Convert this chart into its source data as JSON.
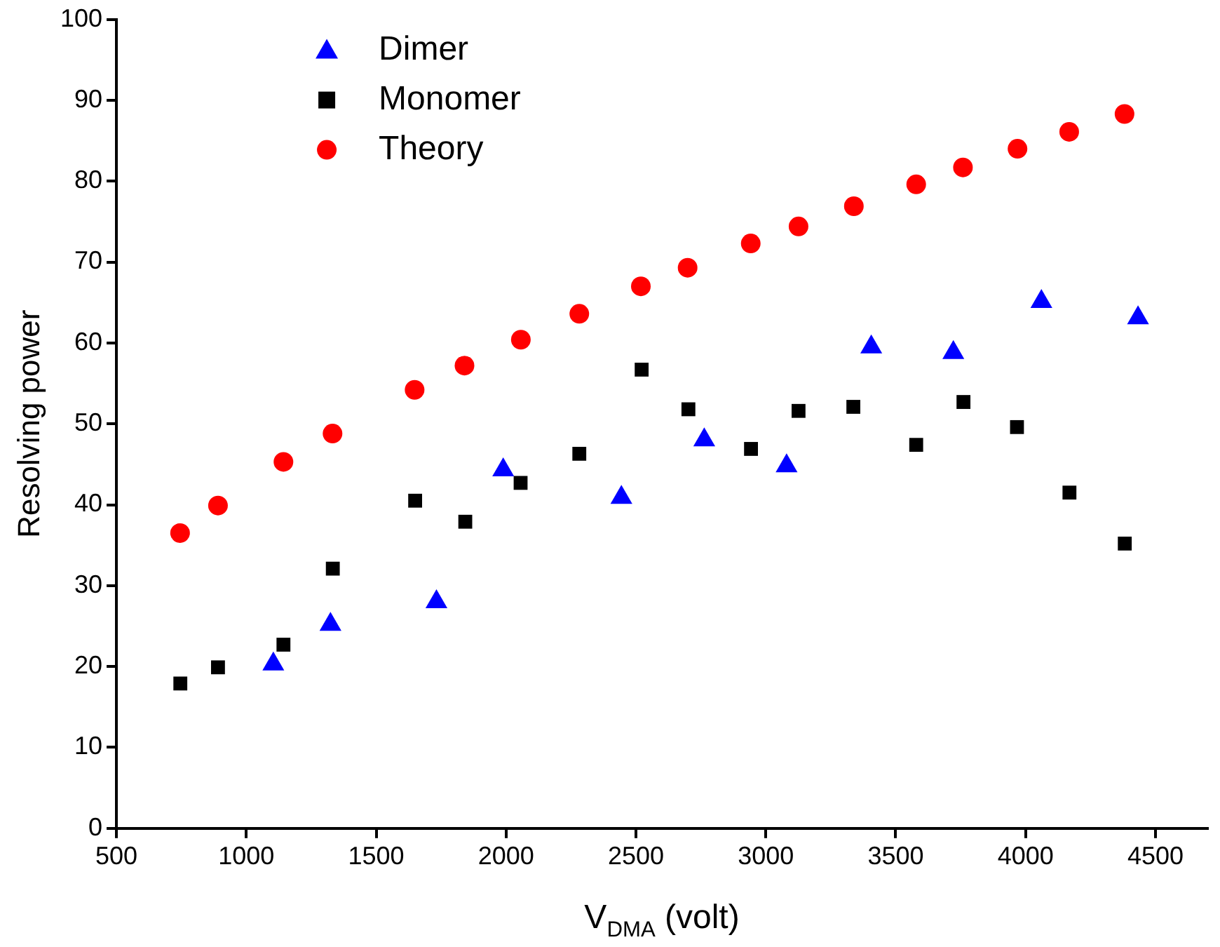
{
  "chart_data": {
    "type": "scatter",
    "xlabel": "V$_{DMA}$ (volt)",
    "ylabel": "Resolving power",
    "xlim": [
      500,
      4700
    ],
    "xticks": [
      500,
      1000,
      1500,
      2000,
      2500,
      3000,
      3500,
      4000,
      4500
    ],
    "ylim": [
      0,
      100
    ],
    "yticks": [
      0,
      10,
      20,
      30,
      40,
      50,
      60,
      70,
      80,
      90,
      100
    ],
    "grid": false,
    "legend": "top left",
    "series": [
      {
        "name": "Dimer",
        "color": "#0000ff",
        "marker": "triangle",
        "x": [
          1104,
          1324,
          1732,
          1989,
          2444,
          2763,
          3080,
          3406,
          3722,
          4061,
          4433
        ],
        "values": [
          20.3,
          25.2,
          28.0,
          44.3,
          40.9,
          48.0,
          44.8,
          59.5,
          58.8,
          65.1,
          63.1
        ]
      },
      {
        "name": "Monomer",
        "color": "#000000",
        "marker": "square",
        "x": [
          746,
          891,
          1143,
          1333,
          1650,
          1843,
          2056,
          2282,
          2522,
          2702,
          2943,
          3126,
          3337,
          3579,
          3761,
          3967,
          4169,
          4382
        ],
        "values": [
          17.9,
          19.9,
          22.7,
          32.1,
          40.5,
          37.9,
          42.7,
          46.3,
          56.7,
          51.8,
          46.9,
          51.6,
          52.1,
          47.4,
          52.7,
          49.6,
          41.5,
          35.2
        ]
      },
      {
        "name": "Theory",
        "color": "#ff0000",
        "marker": "circle",
        "x": [
          745,
          891,
          1143,
          1332,
          1648,
          1840,
          2057,
          2282,
          2519,
          2699,
          2942,
          3126,
          3339,
          3579,
          3759,
          3969,
          4168,
          4381
        ],
        "values": [
          36.5,
          39.9,
          45.3,
          48.8,
          54.2,
          57.2,
          60.4,
          63.6,
          67.0,
          69.3,
          72.3,
          74.4,
          76.9,
          79.6,
          81.7,
          84.0,
          86.1,
          88.3
        ]
      }
    ]
  }
}
